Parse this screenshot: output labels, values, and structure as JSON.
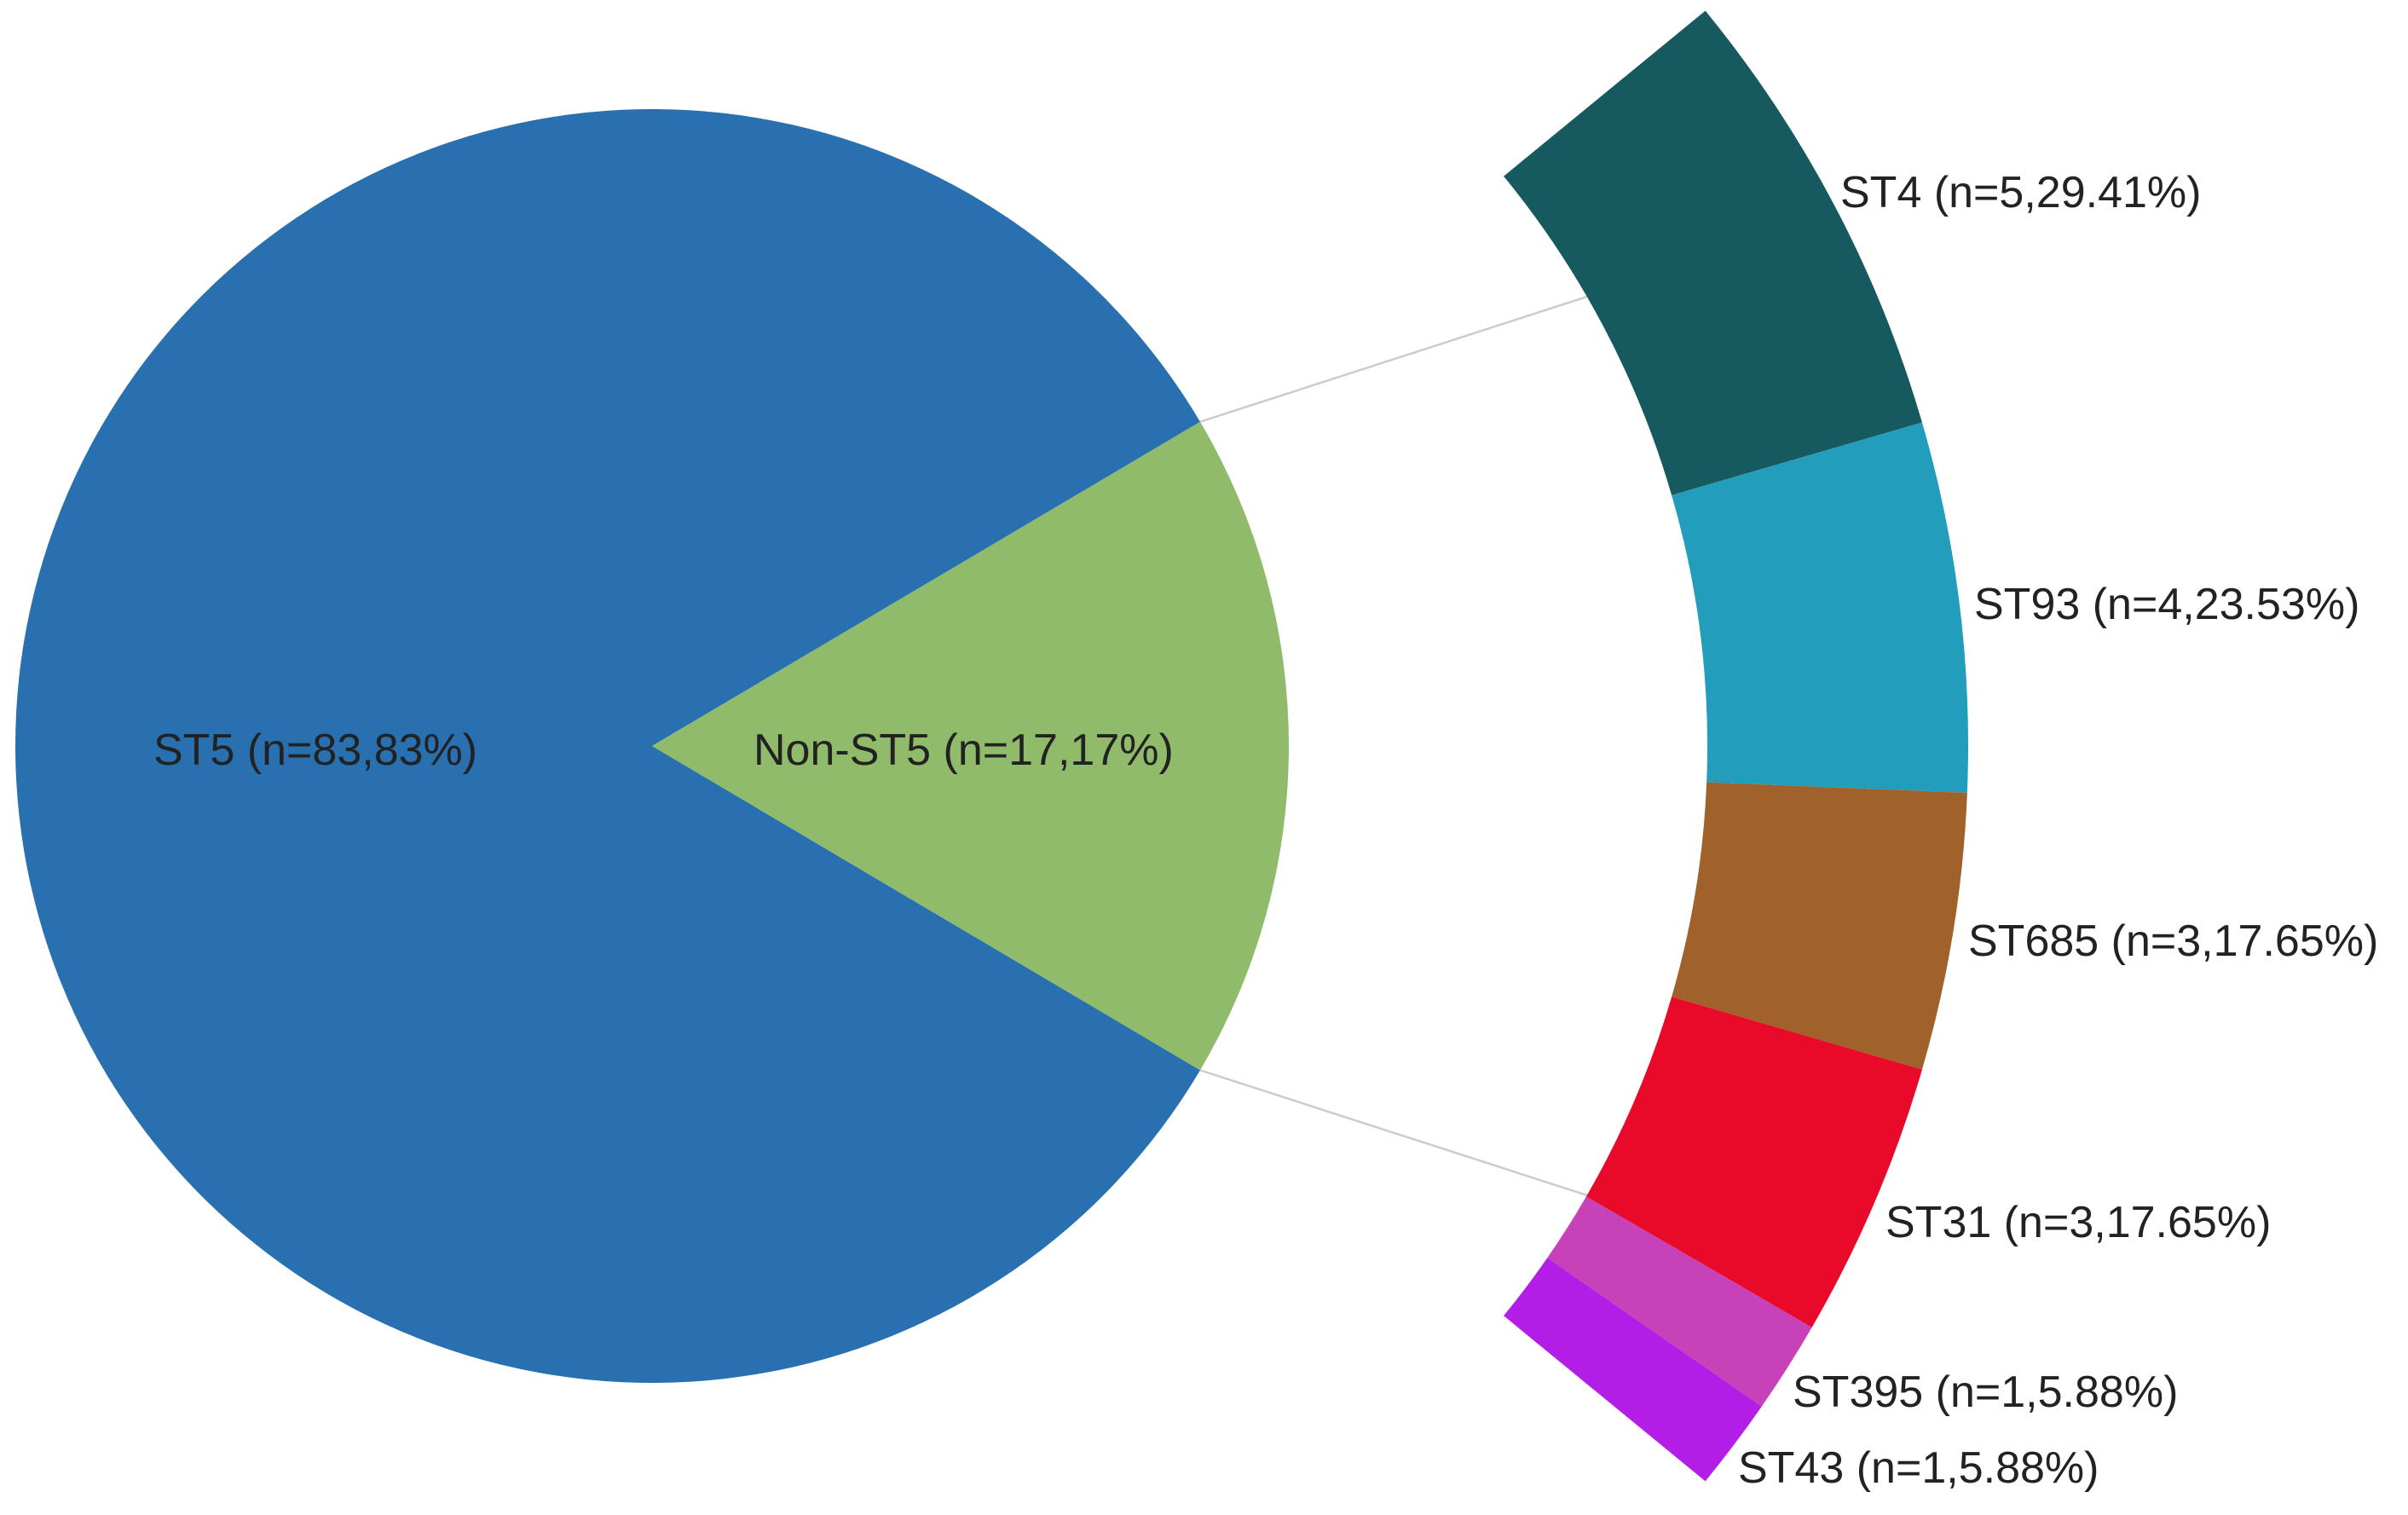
{
  "chart_data": {
    "type": "pie",
    "slices": [
      {
        "label": "ST5 (n=83,83%)",
        "n": 83,
        "percent": 83,
        "color": "#2970B0"
      },
      {
        "label": "Non-ST5 (n=17,17%)",
        "n": 17,
        "percent": 17,
        "color": "#8FBB6A",
        "breakdown": [
          {
            "label": "ST4 (n=5,29.41%)",
            "n": 5,
            "percent": 29.41,
            "color": "#165A60"
          },
          {
            "label": "ST93 (n=4,23.53%)",
            "n": 4,
            "percent": 23.53,
            "color": "#239DBC"
          },
          {
            "label": "ST685 (n=3,17.65%)",
            "n": 3,
            "percent": 17.65,
            "color": "#A0622A"
          },
          {
            "label": "ST31 (n=3,17.65%)",
            "n": 3,
            "percent": 17.65,
            "color": "#E80A28"
          },
          {
            "label": "ST395 (n=1,5.88%)",
            "n": 1,
            "percent": 5.88,
            "color": "#C742B8"
          },
          {
            "label": "ST43 (n=1,5.88%)",
            "n": 1,
            "percent": 5.88,
            "color": "#B21EE6"
          }
        ]
      }
    ],
    "connector_color": "#CCCCCC",
    "label_color": "#222222"
  }
}
